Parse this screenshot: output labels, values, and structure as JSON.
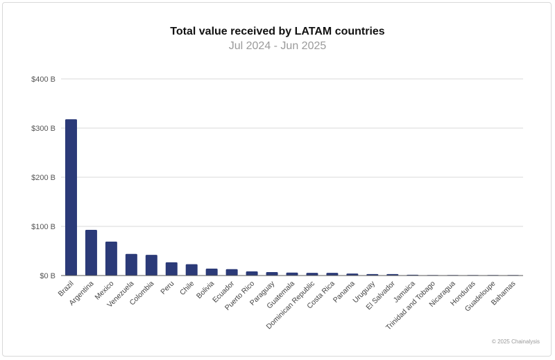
{
  "chart_data": {
    "type": "bar",
    "title": "Total value received by LATAM countries",
    "subtitle": "Jul 2024 - Jun 2025",
    "categories": [
      "Brazil",
      "Argentina",
      "Mexico",
      "Venezuela",
      "Colombia",
      "Peru",
      "Chile",
      "Bolivia",
      "Ecuador",
      "Puerto Rico",
      "Paraguay",
      "Guatemala",
      "Dominican Republic",
      "Costa Rica",
      "Panama",
      "Uruguay",
      "El Salvador",
      "Jamaica",
      "Trinidad and Tobago",
      "Nicaragua",
      "Honduras",
      "Guadeloupe",
      "Bahamas"
    ],
    "values": [
      318,
      93,
      69,
      44,
      42,
      27,
      23,
      14,
      13,
      8.5,
      7,
      6,
      5.5,
      5.5,
      4,
      3,
      3,
      1.5,
      0.3,
      0.3,
      0.2,
      0.2,
      0.2
    ],
    "unit": "$ B",
    "ylim": [
      0,
      400
    ],
    "yticks": [
      0,
      100,
      200,
      300,
      400
    ],
    "ytick_labels": [
      "$0 B",
      "$100 B",
      "$200 B",
      "$300 B",
      "$400 B"
    ],
    "grid": true,
    "bar_color": "#2b3a78",
    "xlabel": "",
    "ylabel": ""
  },
  "footer": "© 2025 Chainalysis"
}
